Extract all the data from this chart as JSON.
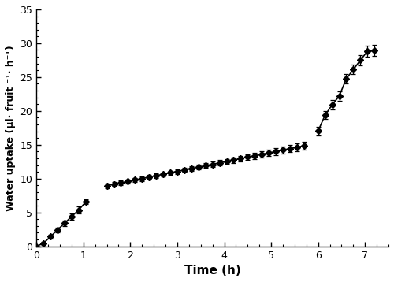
{
  "title": "",
  "xlabel": "Time (h)",
  "ylabel": "Water uptake (µl· fruit ⁻¹· h⁻¹)",
  "xlim": [
    0,
    7.5
  ],
  "ylim": [
    0,
    35
  ],
  "xticks": [
    0,
    1,
    2,
    3,
    4,
    5,
    6,
    7
  ],
  "yticks": [
    0,
    5,
    10,
    15,
    20,
    25,
    30,
    35
  ],
  "bg_color": "#ffffff",
  "line_color": "#000000",
  "marker_color": "#000000",
  "segments": [
    {
      "x": [
        0.0,
        0.15,
        0.3,
        0.45,
        0.6,
        0.75,
        0.9,
        1.05
      ],
      "y": [
        0.0,
        0.45,
        1.43,
        2.44,
        3.41,
        4.4,
        5.37,
        6.55
      ],
      "ye": [
        0.05,
        0.15,
        0.25,
        0.35,
        0.4,
        0.5,
        0.55,
        0.35
      ]
    },
    {
      "x": [
        1.5,
        1.65,
        1.8,
        1.95,
        2.1,
        2.25,
        2.4,
        2.55,
        2.7,
        2.85,
        3.0,
        3.15,
        3.3,
        3.45,
        3.6,
        3.75,
        3.9,
        4.05,
        4.2,
        4.35,
        4.5,
        4.65,
        4.8,
        4.95,
        5.1,
        5.25,
        5.4,
        5.55,
        5.7
      ],
      "y": [
        8.97,
        9.18,
        9.39,
        9.6,
        9.81,
        10.02,
        10.23,
        10.44,
        10.65,
        10.86,
        11.07,
        11.28,
        11.49,
        11.7,
        11.91,
        12.12,
        12.33,
        12.54,
        12.75,
        12.96,
        13.17,
        13.38,
        13.59,
        13.8,
        14.01,
        14.22,
        14.43,
        14.64,
        14.85
      ],
      "ye": [
        0.35,
        0.3,
        0.3,
        0.3,
        0.3,
        0.35,
        0.3,
        0.35,
        0.3,
        0.3,
        0.35,
        0.3,
        0.35,
        0.35,
        0.35,
        0.4,
        0.4,
        0.35,
        0.4,
        0.4,
        0.4,
        0.45,
        0.45,
        0.45,
        0.5,
        0.5,
        0.5,
        0.55,
        0.55
      ]
    },
    {
      "x": [
        6.0,
        6.15,
        6.3,
        6.45,
        6.6,
        6.75,
        6.9,
        7.05,
        7.2
      ],
      "y": [
        17.05,
        19.4,
        20.9,
        22.2,
        24.75,
        26.1,
        27.5,
        28.8,
        28.9
      ],
      "ye": [
        0.65,
        0.6,
        0.65,
        0.7,
        0.7,
        0.7,
        0.75,
        0.8,
        0.8
      ]
    }
  ]
}
